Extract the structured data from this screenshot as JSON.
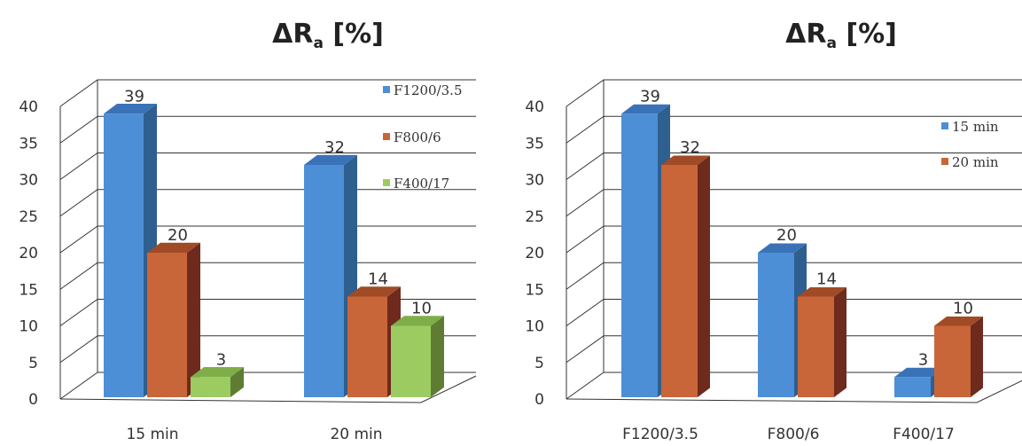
{
  "colors": {
    "blue": {
      "front": "#4d8fd6",
      "side": "#2e5f8f",
      "top": "#3a72b8"
    },
    "orange": {
      "front": "#c8663a",
      "side": "#6e2a1c",
      "top": "#a04a26"
    },
    "green": {
      "front": "#9ccb62",
      "side": "#5e7d33",
      "top": "#7fae48"
    }
  },
  "chart_data": [
    {
      "type": "bar",
      "title_main": "ΔR",
      "title_sub": "a",
      "title_rest": " [%]",
      "categories": [
        "15 min",
        "20 min"
      ],
      "series": [
        {
          "name": "F1200/3.5",
          "values": [
            39,
            32
          ],
          "color": "blue"
        },
        {
          "name": "F800/6",
          "values": [
            20,
            14
          ],
          "color": "orange"
        },
        {
          "name": "F400/17",
          "values": [
            3,
            10
          ],
          "color": "green"
        }
      ],
      "ylim": [
        0,
        40
      ],
      "yticks": [
        0,
        5,
        10,
        15,
        20,
        25,
        30,
        35,
        40
      ],
      "grid": true,
      "legend_position": "top-right"
    },
    {
      "type": "bar",
      "title_main": "ΔR",
      "title_sub": "a",
      "title_rest": " [%]",
      "categories": [
        "F1200/3.5",
        "F800/6",
        "F400/17"
      ],
      "series": [
        {
          "name": "15 min",
          "values": [
            39,
            20,
            3
          ],
          "color": "blue"
        },
        {
          "name": "20 min",
          "values": [
            32,
            14,
            10
          ],
          "color": "orange"
        }
      ],
      "ylim": [
        0,
        40
      ],
      "yticks": [
        0,
        5,
        10,
        15,
        20,
        25,
        30,
        35,
        40
      ],
      "grid": true,
      "legend_position": "top-right"
    }
  ]
}
